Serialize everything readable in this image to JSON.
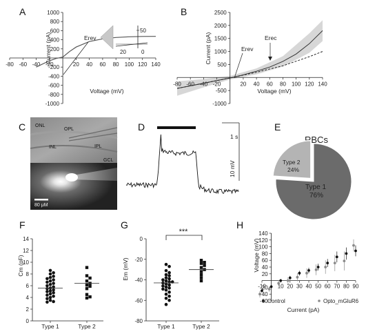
{
  "panels": {
    "A": "A",
    "B": "B",
    "C": "C",
    "D": "D",
    "E": "E",
    "F": "F",
    "G": "G",
    "H": "H"
  },
  "chart_data": [
    {
      "id": "A",
      "type": "line",
      "xlabel": "Voltage (mV)",
      "ylabel": "Current (pA)",
      "xlim": [
        -80,
        140
      ],
      "ylim": [
        -1000,
        1000
      ],
      "xticks": [
        -80,
        -60,
        -40,
        -20,
        20,
        40,
        60,
        80,
        100,
        120,
        140
      ],
      "yticks": [
        -1000,
        -800,
        -600,
        -400,
        -200,
        200,
        400,
        600,
        800,
        1000
      ],
      "series": [
        {
          "x": [
            -40,
            -20,
            -10,
            0,
            10,
            20,
            40,
            60,
            80,
            100,
            120,
            140
          ],
          "y": [
            -200,
            -60,
            -10,
            20,
            140,
            240,
            360,
            420,
            450,
            465,
            472,
            475
          ]
        }
      ],
      "annotations": [
        {
          "text": "Erev",
          "x": -3,
          "y": 0
        }
      ],
      "inset": {
        "xticks": [
          "20",
          "0"
        ],
        "ytick": "50"
      }
    },
    {
      "id": "B",
      "type": "line",
      "xlabel": "Voltage (mV)",
      "ylabel": "Current (pA)",
      "xlim": [
        -80,
        140
      ],
      "ylim": [
        -1000,
        2500
      ],
      "xticks": [
        -80,
        -60,
        -40,
        -20,
        20,
        40,
        60,
        80,
        100,
        120,
        140
      ],
      "yticks": [
        -1000,
        -500,
        500,
        1000,
        1500,
        2000,
        2500
      ],
      "series": [
        {
          "style": "solid",
          "x": [
            -80,
            -60,
            -40,
            -20,
            0,
            20,
            40,
            60,
            80,
            100,
            120,
            140
          ],
          "y": [
            -420,
            -320,
            -220,
            -120,
            -20,
            100,
            240,
            400,
            620,
            900,
            1300,
            1800
          ]
        },
        {
          "style": "dashed",
          "x": [
            -80,
            -40,
            0,
            40,
            80,
            120,
            140
          ],
          "y": [
            -420,
            -220,
            -20,
            200,
            450,
            800,
            1000
          ]
        }
      ],
      "band": {
        "x": [
          -80,
          -40,
          0,
          40,
          80,
          120,
          140
        ],
        "lo": [
          -700,
          -380,
          -80,
          120,
          420,
          950,
          1400
        ],
        "hi": [
          -150,
          -60,
          60,
          350,
          820,
          1700,
          2200
        ]
      },
      "annotations": [
        {
          "text": "Erev",
          "x": -5,
          "y": -20
        },
        {
          "text": "Erec",
          "x": 55,
          "y": 380
        }
      ]
    },
    {
      "id": "D",
      "type": "line",
      "scalebar_time": "1 s",
      "scalebar_voltage": "10 mV"
    },
    {
      "id": "E",
      "type": "pie",
      "title": "RBCs",
      "categories": [
        "Type 1",
        "Type 2"
      ],
      "values": [
        76,
        24
      ],
      "labels": [
        "76%",
        "24%"
      ],
      "colors": [
        "#6b6b6b",
        "#b4b4b4"
      ]
    },
    {
      "id": "F",
      "type": "scatter",
      "ylabel": "Cm  (pF)",
      "categories": [
        "Type 1",
        "Type 2"
      ],
      "ylim": [
        0,
        14
      ],
      "yticks": [
        0,
        2,
        4,
        6,
        8,
        10,
        12,
        14
      ],
      "series": [
        {
          "name": "Type 1",
          "marker": "circle",
          "mean": 5.6,
          "values": [
            8.6,
            8.2,
            8.0,
            7.6,
            7.4,
            7.2,
            7.0,
            6.8,
            6.6,
            6.4,
            6.2,
            6.0,
            5.8,
            5.6,
            5.5,
            5.3,
            5.1,
            5.0,
            4.8,
            4.6,
            4.4,
            4.2,
            4.0,
            3.8,
            3.5,
            3.3,
            3.2
          ]
        },
        {
          "name": "Type 2",
          "marker": "square",
          "mean": 6.4,
          "values": [
            9.1,
            7.7,
            7.3,
            6.8,
            6.4,
            6.1,
            5.9,
            5.5,
            4.5,
            4.1,
            3.9
          ]
        }
      ]
    },
    {
      "id": "G",
      "type": "scatter",
      "ylabel": "Em (mV)",
      "categories": [
        "Type 1",
        "Type 2"
      ],
      "ylim": [
        -80,
        0
      ],
      "yticks": [
        -80,
        -60,
        -40,
        -20,
        0
      ],
      "significance": "***",
      "series": [
        {
          "name": "Type 1",
          "marker": "circle",
          "mean": -43,
          "values": [
            -25,
            -27,
            -31,
            -33,
            -35,
            -36,
            -38,
            -39,
            -40,
            -41,
            -42,
            -42,
            -43,
            -44,
            -45,
            -46,
            -47,
            -48,
            -49,
            -50,
            -52,
            -54,
            -56,
            -58,
            -60,
            -64
          ]
        },
        {
          "name": "Type 2",
          "marker": "square",
          "mean": -30,
          "values": [
            -21,
            -23,
            -24,
            -26,
            -28,
            -30,
            -32,
            -35,
            -38,
            -41
          ]
        }
      ]
    },
    {
      "id": "H",
      "type": "scatter",
      "xlabel": "Current (pA)",
      "ylabel": "Voltage (mV)",
      "xlim": [
        -10,
        90
      ],
      "ylim": [
        -60,
        140
      ],
      "xticks": [
        -10,
        10,
        20,
        30,
        40,
        50,
        60,
        70,
        80,
        90
      ],
      "yticks": [
        -60,
        -40,
        -20,
        20,
        40,
        60,
        80,
        100,
        120,
        140
      ],
      "series": [
        {
          "name": "Control",
          "color": "#111111",
          "x": [
            -10,
            0,
            10,
            20,
            30,
            40,
            50,
            60,
            70,
            80,
            90
          ],
          "y": [
            -30,
            -18,
            0,
            8,
            22,
            30,
            40,
            52,
            70,
            80,
            88
          ],
          "err": [
            6,
            5,
            5,
            6,
            7,
            8,
            10,
            12,
            16,
            18,
            16
          ]
        },
        {
          "name": "Opto_mGluR6",
          "color": "#8a8a8a",
          "x": [
            -10,
            0,
            10,
            20,
            30,
            40,
            50,
            60,
            70,
            80,
            90
          ],
          "y": [
            -40,
            -25,
            -8,
            0,
            10,
            22,
            32,
            40,
            52,
            58,
            104
          ],
          "err": [
            10,
            8,
            8,
            10,
            12,
            14,
            16,
            20,
            24,
            28,
            18
          ]
        }
      ],
      "legend": [
        "Control",
        "Opto_mGluR6"
      ]
    }
  ],
  "micrograph": {
    "labels": [
      "ONL",
      "OPL",
      "INL",
      "IPL",
      "GCL"
    ],
    "scalebar": "80 μM"
  }
}
